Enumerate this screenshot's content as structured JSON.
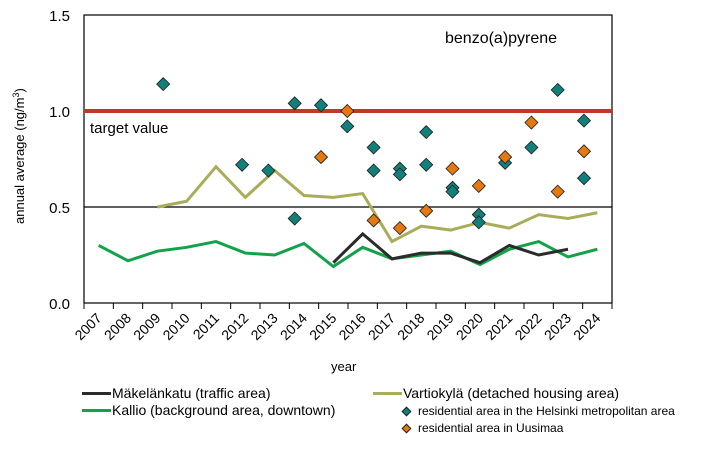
{
  "chart_data": {
    "type": "line",
    "title": "",
    "annotation_title": "benzo(a)pyrene",
    "target_label": "target value",
    "target_value": 1.0,
    "xlabel": "year",
    "ylabel": "annual average  (ng/m3)",
    "ylabel_main": "annual average  (ng/m",
    "ylabel_sup": "3",
    "ylabel_end": ")",
    "ylim": [
      0,
      1.5
    ],
    "yticks": [
      "0.0",
      "0.5",
      "1.0",
      "1.5"
    ],
    "ytick_values": [
      0,
      0.5,
      1.0,
      1.5
    ],
    "gridline_at": 0.5,
    "categories": [
      "2007",
      "2008",
      "2009",
      "2010",
      "2011",
      "2012",
      "2013",
      "2014",
      "2015",
      "2016",
      "2017",
      "2018",
      "2019",
      "2020",
      "2021",
      "2022",
      "2023",
      "2024"
    ],
    "series": [
      {
        "name": "Mäkelänkatu (traffic area)",
        "kind": "line",
        "color": "#2b2b2b",
        "values": [
          null,
          null,
          null,
          null,
          null,
          null,
          null,
          null,
          0.21,
          0.36,
          0.23,
          0.26,
          0.26,
          0.21,
          0.3,
          0.25,
          0.28,
          null
        ]
      },
      {
        "name": "Kallio (background area, downtown)",
        "kind": "line",
        "color": "#12a34a",
        "values": [
          0.3,
          0.22,
          0.27,
          0.29,
          0.32,
          0.26,
          0.25,
          0.31,
          0.19,
          0.29,
          0.23,
          0.25,
          0.27,
          0.2,
          0.28,
          0.32,
          0.24,
          0.28
        ]
      },
      {
        "name": "Vartiokylä (detached housing area)",
        "kind": "line",
        "color": "#a9ad5a",
        "values": [
          null,
          null,
          0.5,
          0.53,
          0.71,
          0.55,
          0.69,
          0.56,
          0.55,
          0.57,
          0.32,
          0.4,
          0.38,
          0.42,
          0.39,
          0.46,
          0.44,
          0.47
        ]
      },
      {
        "name": "residential area in the Helsinki metropolitan area",
        "kind": "scatter",
        "color": "#12807a",
        "points": [
          {
            "x": 2008,
            "y": 1.14
          },
          {
            "x": 2011,
            "y": 0.72
          },
          {
            "x": 2012,
            "y": 0.69
          },
          {
            "x": 2013,
            "y": 1.04
          },
          {
            "x": 2013,
            "y": 0.44
          },
          {
            "x": 2014,
            "y": 1.03
          },
          {
            "x": 2015,
            "y": 0.92
          },
          {
            "x": 2016,
            "y": 0.81
          },
          {
            "x": 2016,
            "y": 0.69
          },
          {
            "x": 2017,
            "y": 0.7
          },
          {
            "x": 2017,
            "y": 0.67
          },
          {
            "x": 2018,
            "y": 0.89
          },
          {
            "x": 2018,
            "y": 0.72
          },
          {
            "x": 2019,
            "y": 0.6
          },
          {
            "x": 2019,
            "y": 0.58
          },
          {
            "x": 2020,
            "y": 0.46
          },
          {
            "x": 2020,
            "y": 0.42
          },
          {
            "x": 2021,
            "y": 0.73
          },
          {
            "x": 2022,
            "y": 0.81
          },
          {
            "x": 2023,
            "y": 1.11
          },
          {
            "x": 2024,
            "y": 0.95
          },
          {
            "x": 2024,
            "y": 0.65
          }
        ]
      },
      {
        "name": "residential area in Uusimaa",
        "kind": "scatter",
        "color": "#e5780f",
        "points": [
          {
            "x": 2014,
            "y": 0.76
          },
          {
            "x": 2015,
            "y": 1.0
          },
          {
            "x": 2016,
            "y": 0.43
          },
          {
            "x": 2017,
            "y": 0.39
          },
          {
            "x": 2018,
            "y": 0.48
          },
          {
            "x": 2019,
            "y": 0.7
          },
          {
            "x": 2020,
            "y": 0.61
          },
          {
            "x": 2021,
            "y": 0.76
          },
          {
            "x": 2022,
            "y": 0.94
          },
          {
            "x": 2023,
            "y": 0.58
          },
          {
            "x": 2024,
            "y": 0.79
          }
        ]
      }
    ],
    "target_color": "#c0372b",
    "grid": false,
    "legend_position": "bottom"
  },
  "legend": {
    "items": [
      {
        "label": "Mäkelänkatu (traffic area)",
        "color": "#2b2b2b"
      },
      {
        "label": "Kallio (background area, downtown)",
        "color": "#12a34a"
      },
      {
        "label": "Vartiokylä (detached housing area)",
        "color": "#a9ad5a"
      },
      {
        "label": "residential area in the Helsinki metropolitan area",
        "color": "#12807a"
      },
      {
        "label": "residential area in Uusimaa",
        "color": "#e5780f"
      }
    ]
  }
}
